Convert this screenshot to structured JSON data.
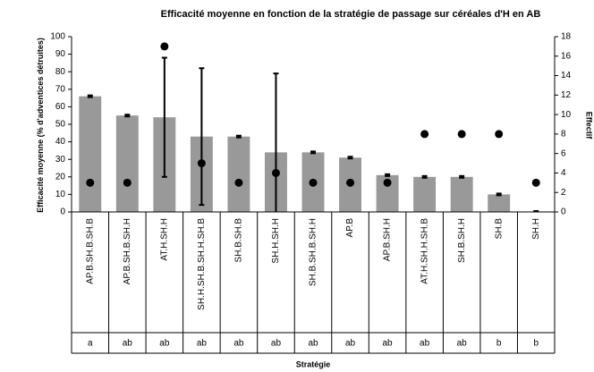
{
  "chart_data": {
    "type": "bar",
    "title": "Efficacité moyenne en fonction de la stratégie de passage sur céréales d'H en AB",
    "x_label": "Stratégie",
    "y_label": "Efficacité moyenne (% d'adventices détruites)",
    "y2_label": "Effectif",
    "categories": [
      "AP.B.SH.B.SH.B",
      "AP.B.SH.B.SH.H",
      "AT.H.SH.H",
      "SH.H.SH.B.SH.H.SH.B",
      "SH.B.SH.B",
      "SH.H.SH.H",
      "SH.B.SH.B.SH.H",
      "AP.B",
      "AP.B.SH.H",
      "AT.H.SH.H.SH.B",
      "SH.B.SH.H",
      "SH.B",
      "SH.H"
    ],
    "group_letters": [
      "a",
      "ab",
      "ab",
      "ab",
      "ab",
      "ab",
      "ab",
      "ab",
      "ab",
      "ab",
      "ab",
      "b",
      "b"
    ],
    "series": [
      {
        "type": "bar",
        "color": "#999999",
        "values": [
          66,
          55,
          54,
          43,
          43,
          34,
          34,
          31,
          21,
          20,
          20,
          10,
          0
        ],
        "errors": [
          0.5,
          0.5,
          34,
          39,
          0.5,
          45,
          0.5,
          0.5,
          0.5,
          0.5,
          0.5,
          0.5,
          0.5
        ]
      },
      {
        "type": "scatter",
        "axis": "y2",
        "color": "#000000",
        "values": [
          3,
          3,
          17,
          5,
          3,
          4,
          3,
          3,
          3,
          8,
          8,
          8,
          3
        ]
      }
    ],
    "ylim": [
      0,
      100
    ],
    "yticks": [
      0,
      10,
      20,
      30,
      40,
      50,
      60,
      70,
      80,
      90,
      100
    ],
    "y2lim": [
      0,
      18
    ],
    "y2ticks": [
      0,
      2,
      4,
      6,
      8,
      10,
      12,
      14,
      16,
      18
    ]
  }
}
